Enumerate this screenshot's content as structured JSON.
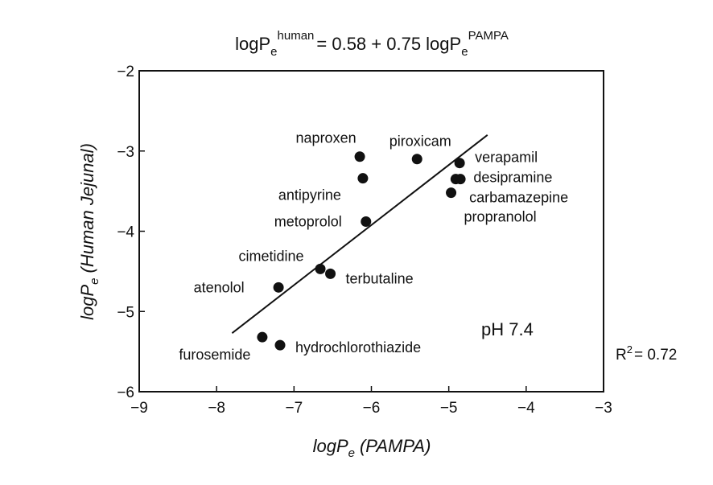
{
  "chart_data": {
    "type": "scatter",
    "title": {
      "a": "logP",
      "b": "e",
      "c": "human",
      "d": "= 0.58 + 0.75 logP",
      "e": "e",
      "f": "PAMPA"
    },
    "x_label": {
      "main": "logP",
      "sub": "e",
      "rest": "(PAMPA)"
    },
    "y_label": {
      "main": "logP",
      "sub": "e",
      "rest": "(Human Jejunal)"
    },
    "xlim": [
      -9,
      -3
    ],
    "ylim": [
      -6,
      -2
    ],
    "xticks": [
      {
        "value": -9,
        "label": "−9"
      },
      {
        "value": -8,
        "label": "−8"
      },
      {
        "value": -7,
        "label": "−7"
      },
      {
        "value": -6,
        "label": "−6"
      },
      {
        "value": -5,
        "label": "−5"
      },
      {
        "value": -4,
        "label": "−4"
      },
      {
        "value": -3,
        "label": "−3"
      }
    ],
    "yticks": [
      {
        "value": -2,
        "label": "−2"
      },
      {
        "value": -3,
        "label": "−3"
      },
      {
        "value": -4,
        "label": "−4"
      },
      {
        "value": -5,
        "label": "−5"
      },
      {
        "value": -6,
        "label": "−6"
      }
    ],
    "color": "#111111",
    "points": {
      "names": [
        "naproxen",
        "antipyrine",
        "piroxicam",
        "verapamil",
        "desipramine",
        "carbamazepine",
        "propranolol",
        "metoprolol",
        "cimetidine",
        "terbutaline",
        "atenolol",
        "furosemide",
        "hydrochlorothiazide"
      ],
      "x": [
        -6.15,
        -6.11,
        -5.41,
        -4.86,
        -4.91,
        -4.85,
        -4.97,
        -6.07,
        -6.66,
        -6.53,
        -7.2,
        -7.41,
        -7.18
      ],
      "y": [
        -3.07,
        -3.34,
        -3.1,
        -3.15,
        -3.35,
        -3.35,
        -3.52,
        -3.88,
        -4.47,
        -4.53,
        -4.7,
        -5.32,
        -5.42
      ]
    },
    "fit_line": {
      "x": [
        -7.8,
        -4.5
      ],
      "y": [
        -5.27,
        -2.8
      ]
    },
    "annotation": "pH 7.4",
    "r2": {
      "a": "R",
      "b": "2",
      "c": "= 0.72"
    }
  }
}
